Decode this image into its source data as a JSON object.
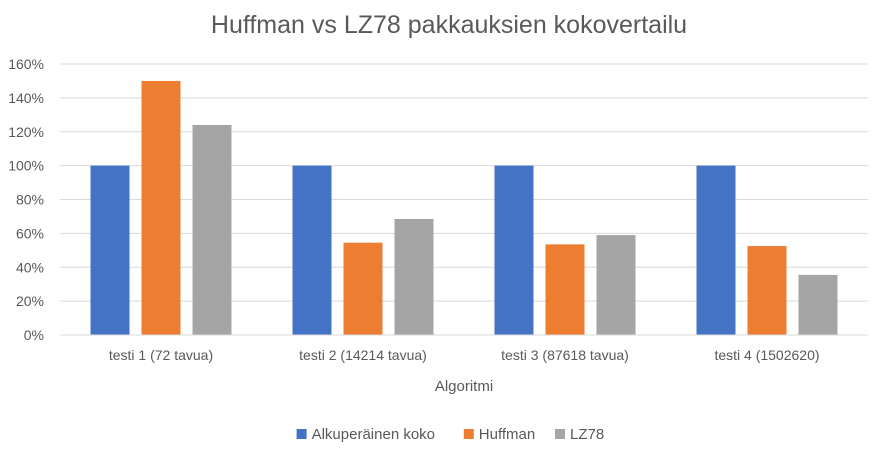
{
  "chart_data": {
    "type": "bar",
    "title": "Huffman vs LZ78 pakkauksien kokovertailu",
    "xlabel": "Algoritmi",
    "ylabel": "",
    "categories": [
      "testi 1 (72 tavua)",
      "testi 2 (14214 tavua)",
      "testi 3 (87618 tavua)",
      "testi 4 (1502620)"
    ],
    "series": [
      {
        "name": "Alkuperäinen koko",
        "values": [
          100,
          100,
          100,
          100
        ],
        "color": "#4472c4"
      },
      {
        "name": "Huffman",
        "values": [
          150,
          54.5,
          53.5,
          52.5
        ],
        "color": "#ed7d31"
      },
      {
        "name": "LZ78",
        "values": [
          124,
          68.5,
          59,
          35.5
        ],
        "color": "#a5a5a5"
      }
    ],
    "ylim": [
      0,
      160
    ],
    "yticks": [
      "0%",
      "20%",
      "40%",
      "60%",
      "80%",
      "100%",
      "120%",
      "140%",
      "160%"
    ],
    "grid": true,
    "legend_position": "bottom"
  }
}
